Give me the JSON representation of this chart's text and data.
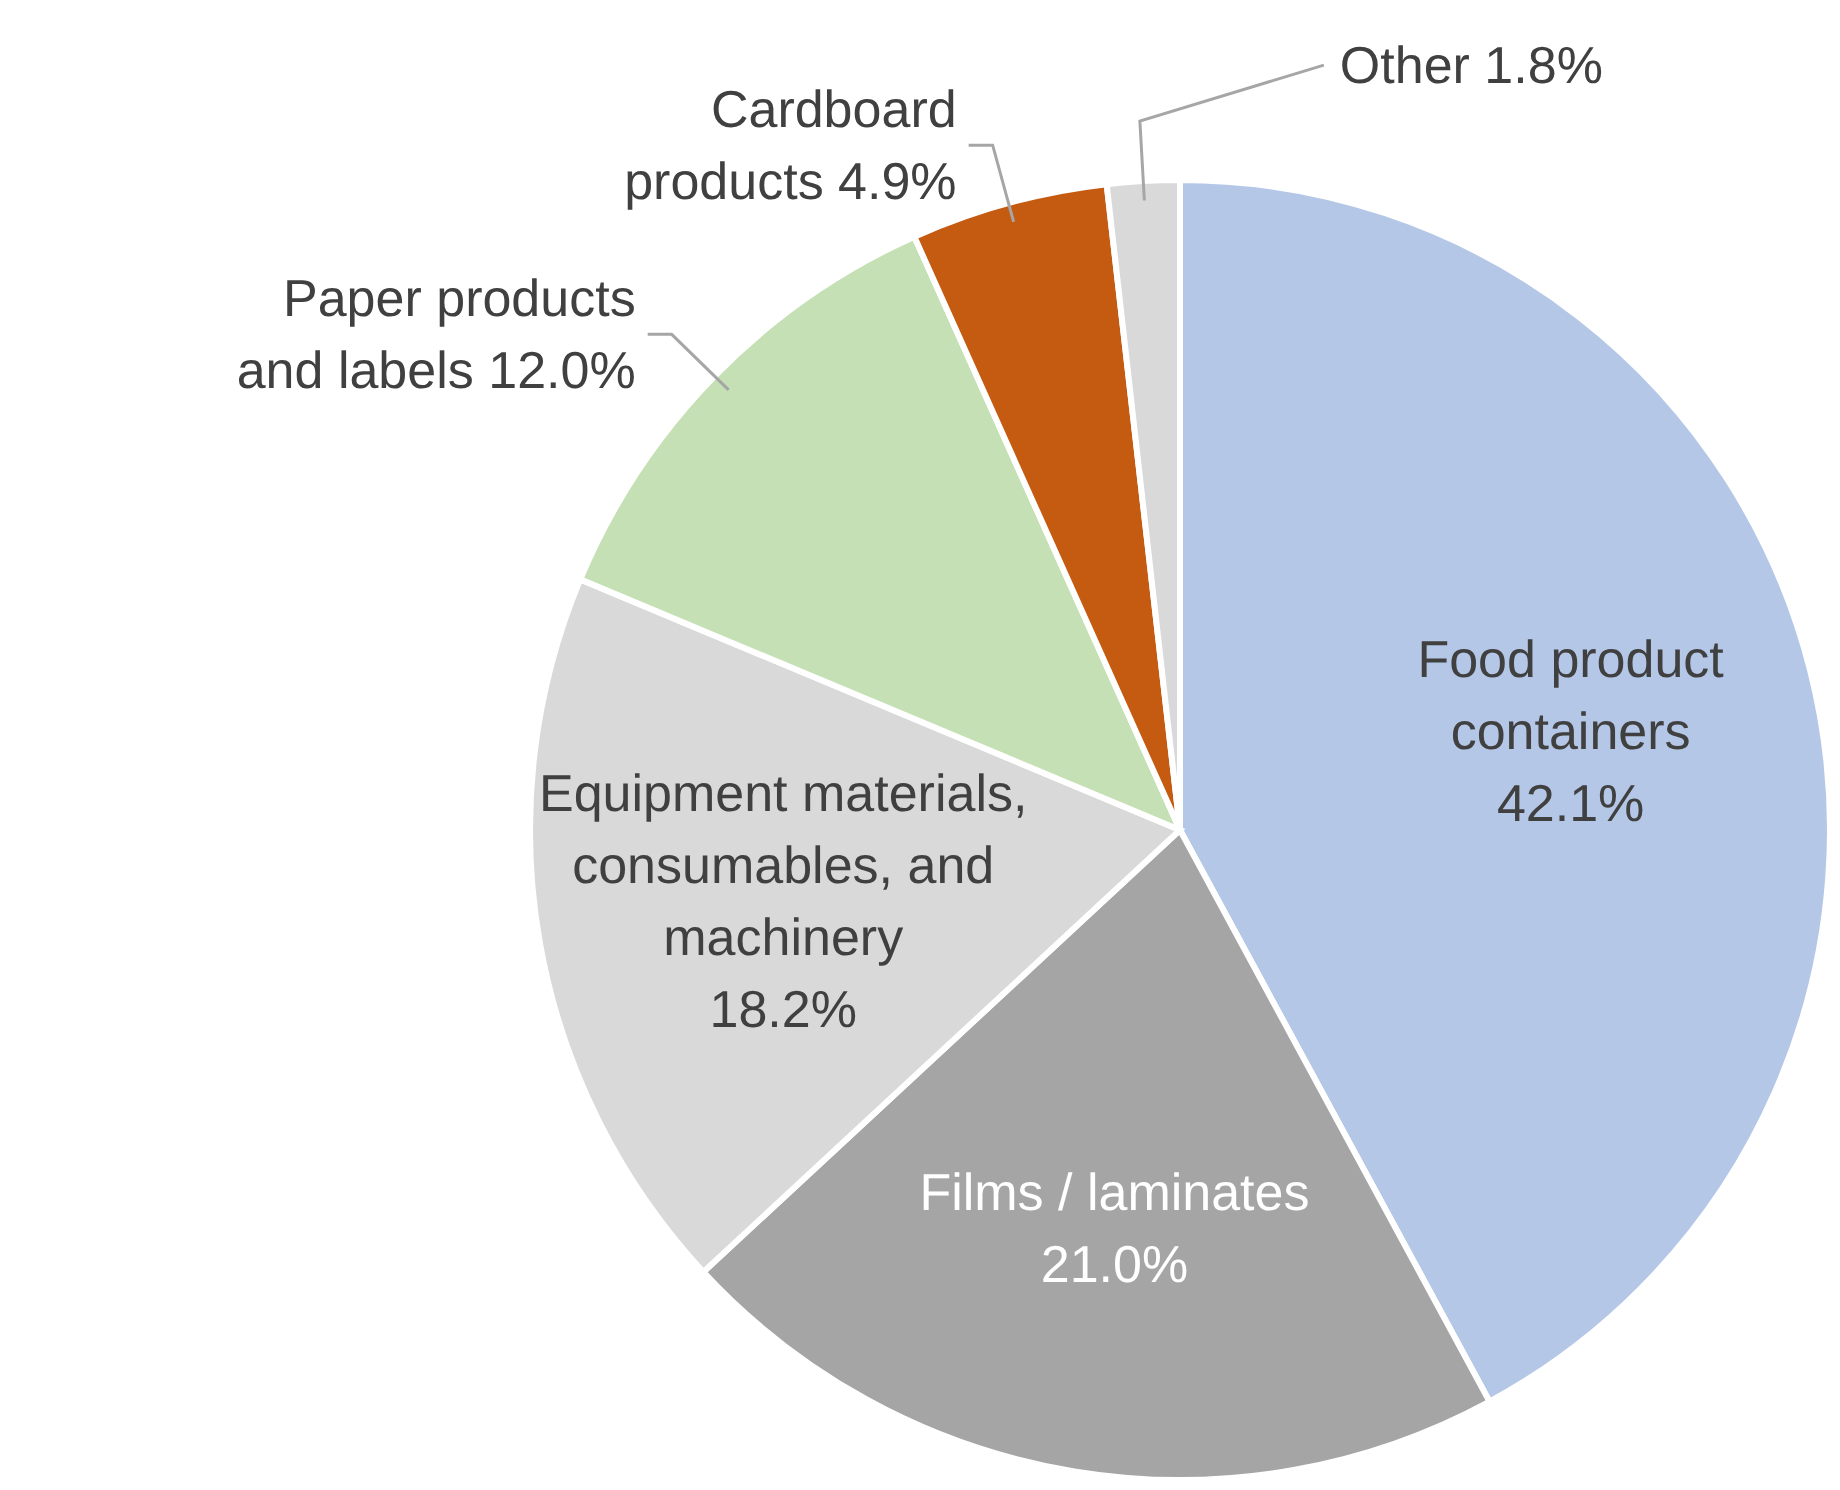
{
  "chart_data": {
    "type": "pie",
    "categories": [
      "Food product containers",
      "Films / laminates",
      "Equipment materials, consumables, and machinery",
      "Paper products and labels",
      "Cardboard products",
      "Other"
    ],
    "values": [
      42.1,
      21.0,
      18.2,
      12.0,
      4.9,
      1.8
    ],
    "value_labels": [
      "42.1%",
      "21.0%",
      "18.2%",
      "12.0%",
      "4.9%",
      "1.8%"
    ],
    "colors": [
      "#b4c7e7",
      "#a5a5a5",
      "#d9d9d9",
      "#c5e0b4",
      "#c55a11",
      "#d9d9d9"
    ]
  }
}
